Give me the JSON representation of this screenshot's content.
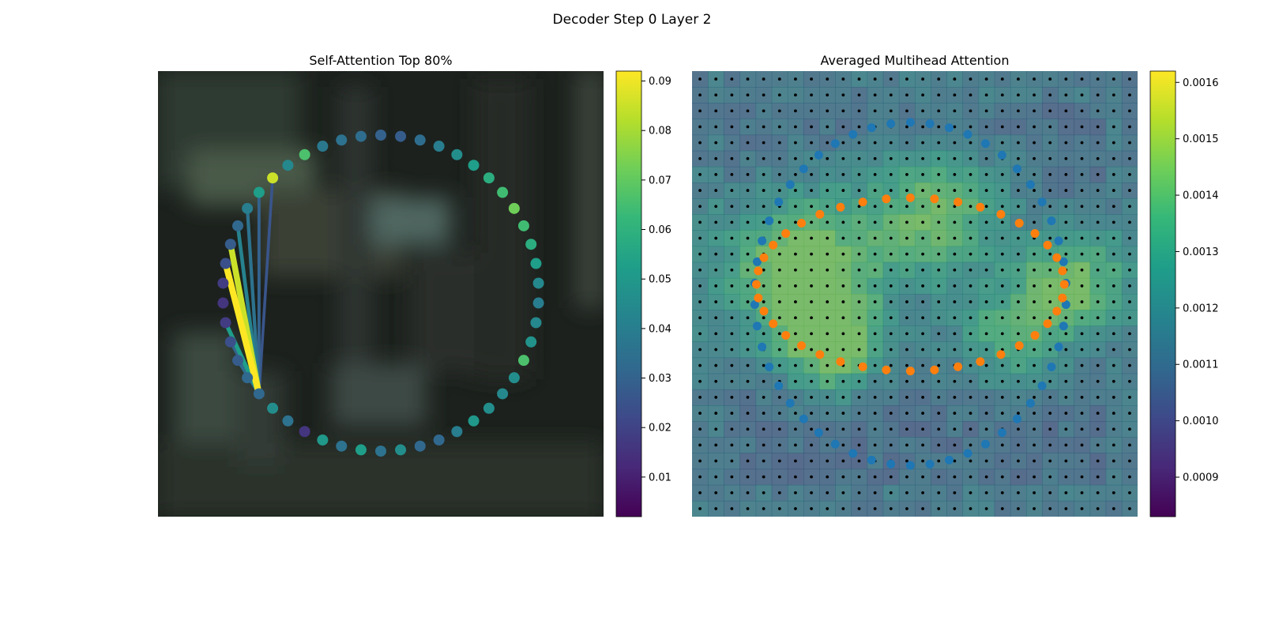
{
  "figure": {
    "title": "Decoder Step 0 Layer 2"
  },
  "chart_data": [
    {
      "type": "scatter",
      "title": "Self-Attention Top 80%",
      "description_points": "50 points on a circle, colored by attention weight (viridis)",
      "angle_step_deg": 7.2,
      "point_weights": [
        0.036,
        0.052,
        0.036,
        0.05,
        0.016,
        0.036,
        0.046,
        0.032,
        0.032,
        0.028,
        0.024,
        0.018,
        0.016,
        0.018,
        0.024,
        0.028,
        0.032,
        0.04,
        0.052,
        0.085,
        0.044,
        0.066,
        0.038,
        0.036,
        0.034,
        0.03,
        0.028,
        0.034,
        0.04,
        0.046,
        0.052,
        0.058,
        0.064,
        0.072,
        0.064,
        0.058,
        0.052,
        0.044,
        0.04,
        0.044,
        0.048,
        0.066,
        0.046,
        0.044,
        0.046,
        0.05,
        0.04,
        0.032,
        0.032,
        0.046
      ],
      "source_index": 7,
      "edges": [
        {
          "target": 14,
          "weight": 0.092
        },
        {
          "target": 15,
          "weight": 0.085
        },
        {
          "target": 11,
          "weight": 0.052
        },
        {
          "target": 16,
          "weight": 0.042
        },
        {
          "target": 17,
          "weight": 0.036
        },
        {
          "target": 9,
          "weight": 0.034
        },
        {
          "target": 18,
          "weight": 0.03
        },
        {
          "target": 10,
          "weight": 0.03
        },
        {
          "target": 19,
          "weight": 0.026
        }
      ],
      "colorbar": {
        "ticks": [
          0.01,
          0.02,
          0.03,
          0.04,
          0.05,
          0.06,
          0.07,
          0.08,
          0.09
        ],
        "range": [
          0.002,
          0.092
        ]
      },
      "background": "blurred photo (dark green scene)"
    },
    {
      "type": "heatmap",
      "title": "Averaged Multihead Attention",
      "grid_size": 28,
      "heat_blobs": [
        {
          "cx": 0.25,
          "cy": 0.45,
          "r": 0.18,
          "w": 0.55
        },
        {
          "cx": 0.55,
          "cy": 0.32,
          "r": 0.15,
          "w": 0.42
        },
        {
          "cx": 0.85,
          "cy": 0.48,
          "r": 0.12,
          "w": 0.5
        },
        {
          "cx": 0.32,
          "cy": 0.62,
          "r": 0.1,
          "w": 0.45
        },
        {
          "cx": 0.7,
          "cy": 0.6,
          "r": 0.12,
          "w": 0.3
        }
      ],
      "series": [
        {
          "color": "#1f77b4",
          "count": 50,
          "radius_frac": 0.35
        },
        {
          "color": "#ff7f0e",
          "count": 40,
          "radius_frac": 0.27
        }
      ],
      "colorbar": {
        "ticks": [
          0.0009,
          0.001,
          0.0011,
          0.0012,
          0.0013,
          0.0014,
          0.0015,
          0.0016
        ],
        "range": [
          0.00083,
          0.00162
        ]
      }
    }
  ],
  "colors": {
    "viridis": [
      "#440154",
      "#482878",
      "#3e4989",
      "#31688e",
      "#26828e",
      "#1f9e89",
      "#35b779",
      "#6ece58",
      "#b5de2b",
      "#fde725"
    ],
    "grid_dot": "#000000"
  }
}
